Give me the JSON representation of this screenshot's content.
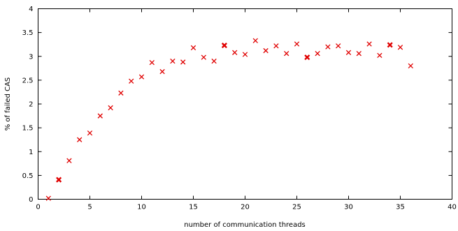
{
  "chart_data": {
    "type": "scatter",
    "title": "",
    "xlabel": "number of communication threads",
    "ylabel": "% of failed CAS",
    "xlim": [
      0,
      40
    ],
    "ylim": [
      0,
      4
    ],
    "xticks": [
      0,
      5,
      10,
      15,
      20,
      25,
      30,
      35,
      40
    ],
    "yticks": [
      0,
      0.5,
      1,
      1.5,
      2,
      2.5,
      3,
      3.5,
      4
    ],
    "xtick_labels": [
      "0",
      "5",
      "10",
      "15",
      "20",
      "25",
      "30",
      "35",
      "40"
    ],
    "ytick_labels": [
      "0",
      "0.5",
      "1",
      "1.5",
      "2",
      "2.5",
      "3",
      "3.5",
      "4"
    ],
    "grid": false,
    "legend": "none",
    "marker": "x",
    "color": "#e00000",
    "series": [
      {
        "x": [
          1,
          2,
          3,
          4,
          5,
          6,
          7,
          8,
          9,
          10,
          11,
          12,
          13,
          14,
          15,
          16,
          17,
          18,
          19,
          20,
          21,
          22,
          23,
          24,
          25,
          26,
          27,
          28,
          29,
          30,
          31,
          32,
          33,
          34,
          35,
          36
        ],
        "y": [
          0.02,
          0.41,
          0.81,
          1.25,
          1.39,
          1.75,
          1.92,
          2.23,
          2.48,
          2.57,
          2.87,
          2.68,
          2.9,
          2.88,
          3.18,
          2.98,
          2.9,
          3.23,
          3.08,
          3.04,
          3.33,
          3.12,
          3.22,
          3.06,
          3.26,
          2.98,
          3.06,
          3.2,
          3.22,
          3.08,
          3.06,
          3.26,
          3.02,
          3.24,
          3.19,
          2.8
        ],
        "emphasized_x": [
          2,
          18,
          26,
          34
        ]
      }
    ]
  }
}
